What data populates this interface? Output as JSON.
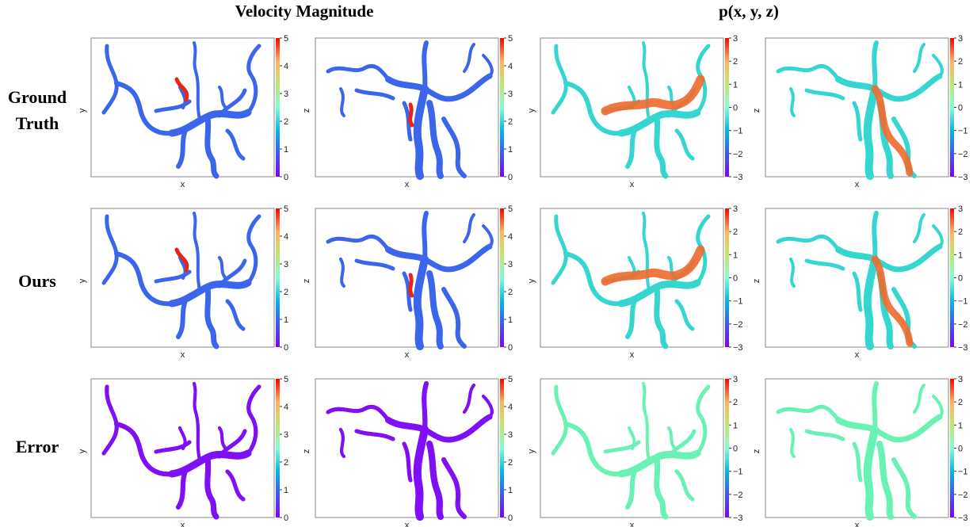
{
  "figure": {
    "col_titles": [
      "Velocity Magnitude",
      "p(x, y, z)"
    ],
    "row_labels": [
      "Ground\nTruth",
      "Ours",
      "Error"
    ]
  },
  "chart_data": {
    "type": "heatmap",
    "rows": [
      "Ground Truth",
      "Ours",
      "Error"
    ],
    "columns": [
      {
        "group": "Velocity Magnitude",
        "xlabel": "x",
        "ylabel": "y",
        "cbar_ticks": [
          "0",
          "1",
          "2",
          "3",
          "4",
          "5"
        ],
        "cbar_range": [
          0,
          5
        ]
      },
      {
        "group": "Velocity Magnitude",
        "xlabel": "x",
        "ylabel": "z",
        "cbar_ticks": [
          "0",
          "1",
          "2",
          "3",
          "4",
          "5"
        ],
        "cbar_range": [
          0,
          5
        ]
      },
      {
        "group": "p(x, y, z)",
        "xlabel": "x",
        "ylabel": "y",
        "cbar_ticks": [
          "−3",
          "−2",
          "−1",
          "0",
          "1",
          "2",
          "3"
        ],
        "cbar_range": [
          -3,
          3
        ]
      },
      {
        "group": "p(x, y, z)",
        "xlabel": "x",
        "ylabel": "z",
        "cbar_ticks": [
          "−3",
          "−2",
          "−1",
          "0",
          "1",
          "2",
          "3"
        ],
        "cbar_range": [
          -3,
          3
        ]
      }
    ],
    "colormap": "rainbow",
    "colors": {
      "gt_velocity": "#3b66ec",
      "gt_velocity_high": "#e8231a",
      "gt_pressure": "#35d6cf",
      "gt_pressure_high": "#f06a2c",
      "error_velocity": "#7f10f5",
      "error_pressure": "#6af2b4"
    }
  }
}
